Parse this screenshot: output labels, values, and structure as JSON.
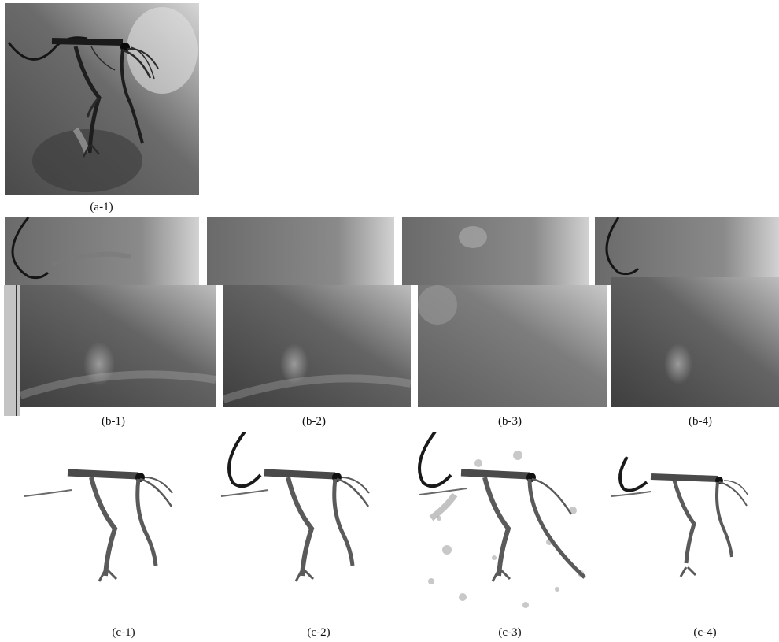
{
  "figure": {
    "captions": {
      "a1": "(a-1)",
      "b1": "(b-1)",
      "b2": "(b-2)",
      "b3": "(b-3)",
      "b4": "(b-4)",
      "c1": "(c-1)",
      "c2": "(c-2)",
      "c3": "(c-3)",
      "c4": "(c-4)"
    }
  },
  "colors": {
    "background": "#ffffff",
    "angio_dark": "#3f3f3f",
    "angio_mid": "#6e6e6e",
    "angio_light": "#c9c9c9",
    "vessel": "#1e1e1e",
    "vessel_seg": "#5a5a5a",
    "caption_text": "#111111"
  }
}
